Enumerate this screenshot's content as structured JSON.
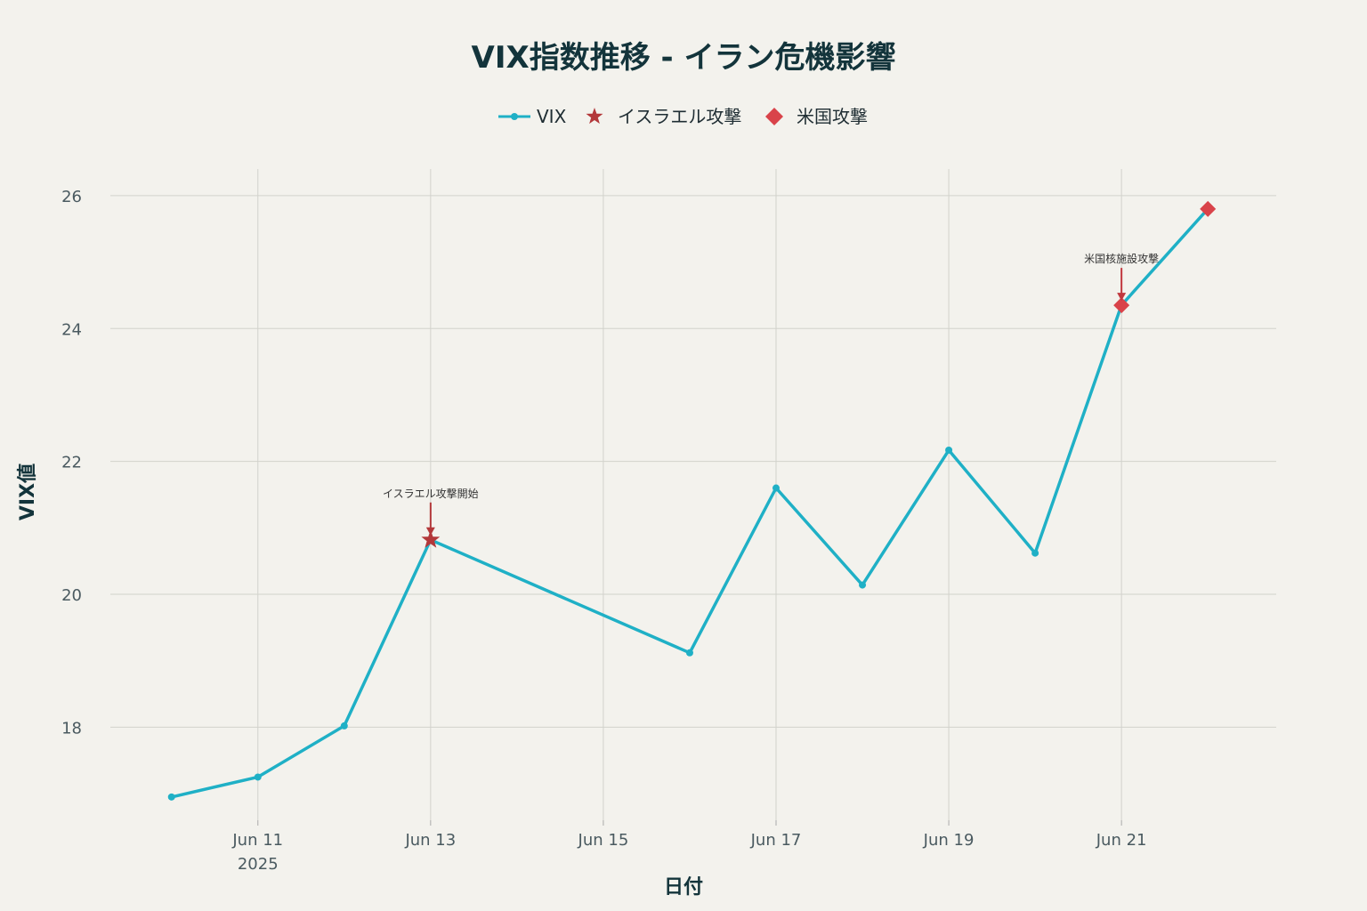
{
  "chart_data": {
    "type": "line",
    "title": "VIX指数推移 - イラン危機影響",
    "xlabel": "日付",
    "ylabel": "VIX値",
    "x": [
      "2025-06-10",
      "2025-06-11",
      "2025-06-12",
      "2025-06-13",
      "2025-06-16",
      "2025-06-17",
      "2025-06-18",
      "2025-06-19",
      "2025-06-20",
      "2025-06-21",
      "2025-06-22"
    ],
    "series": [
      {
        "name": "VIX",
        "values": [
          16.95,
          17.25,
          18.02,
          20.82,
          19.12,
          21.6,
          20.14,
          22.17,
          20.62,
          24.35,
          25.8
        ],
        "color": "#1fb0c6"
      }
    ],
    "markers": [
      {
        "name": "イスラエル攻撃",
        "symbol": "star",
        "color": "#b3383a",
        "x": "2025-06-13",
        "y": 20.82
      },
      {
        "name": "米国攻撃",
        "symbol": "diamond",
        "color": "#d9434a",
        "points": [
          {
            "x": "2025-06-21",
            "y": 24.35
          },
          {
            "x": "2025-06-22",
            "y": 25.8
          }
        ]
      }
    ],
    "annotations": [
      {
        "text": "イスラエル攻撃開始",
        "x": "2025-06-13",
        "y": 20.82,
        "color": "#b3383a"
      },
      {
        "text": "米国核施設攻撃",
        "x": "2025-06-21",
        "y": 24.35,
        "color": "#c0383e"
      }
    ],
    "xticks": [
      {
        "date": "2025-06-11",
        "label": "Jun 11",
        "sublabel": "2025"
      },
      {
        "date": "2025-06-13",
        "label": "Jun 13"
      },
      {
        "date": "2025-06-15",
        "label": "Jun 15"
      },
      {
        "date": "2025-06-17",
        "label": "Jun 17"
      },
      {
        "date": "2025-06-19",
        "label": "Jun 19"
      },
      {
        "date": "2025-06-21",
        "label": "Jun 21"
      }
    ],
    "yticks": [
      18,
      20,
      22,
      24,
      26
    ],
    "xlim": [
      "2025-06-09T07:00",
      "2025-06-22T19:00"
    ],
    "ylim": [
      16.6,
      26.4
    ],
    "grid": true,
    "legend_position": "top-center"
  }
}
